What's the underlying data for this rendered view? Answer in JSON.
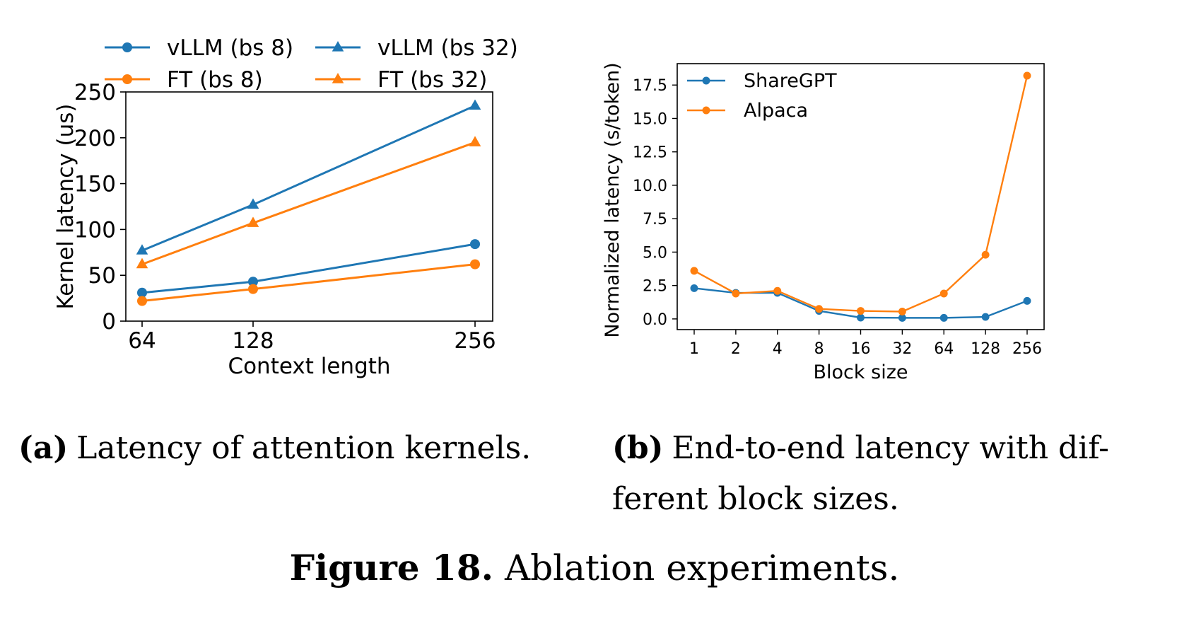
{
  "figure": {
    "label": "Figure 18.",
    "text": "Ablation experiments."
  },
  "colors": {
    "blue": "#1f77b4",
    "orange": "#ff7f0e"
  },
  "chart_data": [
    {
      "type": "line",
      "caption_label": "(a)",
      "caption_text": "Latency of attention kernels.",
      "xlabel": "Context length",
      "ylabel": "Kernel latency (us)",
      "x": [
        64,
        128,
        256
      ],
      "xticklabels": [
        "64",
        "128",
        "256"
      ],
      "ylim": [
        0,
        250
      ],
      "yticks": [
        0,
        50,
        100,
        150,
        200,
        250
      ],
      "yticklabels": [
        "0",
        "50",
        "100",
        "150",
        "200",
        "250"
      ],
      "legend": "top (2 columns, above axes)",
      "series": [
        {
          "name": "vLLM (bs 8)",
          "color": "#1f77b4",
          "marker": "circle",
          "values": [
            31,
            43,
            84
          ]
        },
        {
          "name": "vLLM (bs 32)",
          "color": "#1f77b4",
          "marker": "triangle",
          "values": [
            77,
            127,
            235
          ]
        },
        {
          "name": "FT (bs 8)",
          "color": "#ff7f0e",
          "marker": "circle",
          "values": [
            22,
            35,
            62
          ]
        },
        {
          "name": "FT (bs 32)",
          "color": "#ff7f0e",
          "marker": "triangle",
          "values": [
            62,
            107,
            195
          ]
        }
      ]
    },
    {
      "type": "line",
      "caption_label": "(b)",
      "caption_text_1": "End-to-end latency with dif-",
      "caption_text_2": "ferent block sizes.",
      "xlabel": "Block size",
      "ylabel": "Normalized latency (s/token)",
      "categories": [
        "1",
        "2",
        "4",
        "8",
        "16",
        "32",
        "64",
        "128",
        "256"
      ],
      "ylim": [
        -0.8,
        19.1
      ],
      "yticks": [
        0,
        2.5,
        5,
        7.5,
        10,
        12.5,
        15,
        17.5
      ],
      "yticklabels": [
        "0.0",
        "2.5",
        "5.0",
        "7.5",
        "10.0",
        "12.5",
        "15.0",
        "17.5"
      ],
      "legend": "top-left",
      "series": [
        {
          "name": "ShareGPT",
          "color": "#1f77b4",
          "marker": "circle",
          "values": [
            2.3,
            1.95,
            1.95,
            0.6,
            0.1,
            0.08,
            0.08,
            0.15,
            1.35
          ]
        },
        {
          "name": "Alpaca",
          "color": "#ff7f0e",
          "marker": "circle",
          "values": [
            3.6,
            1.9,
            2.1,
            0.75,
            0.6,
            0.55,
            1.9,
            4.8,
            18.2
          ]
        }
      ]
    }
  ]
}
